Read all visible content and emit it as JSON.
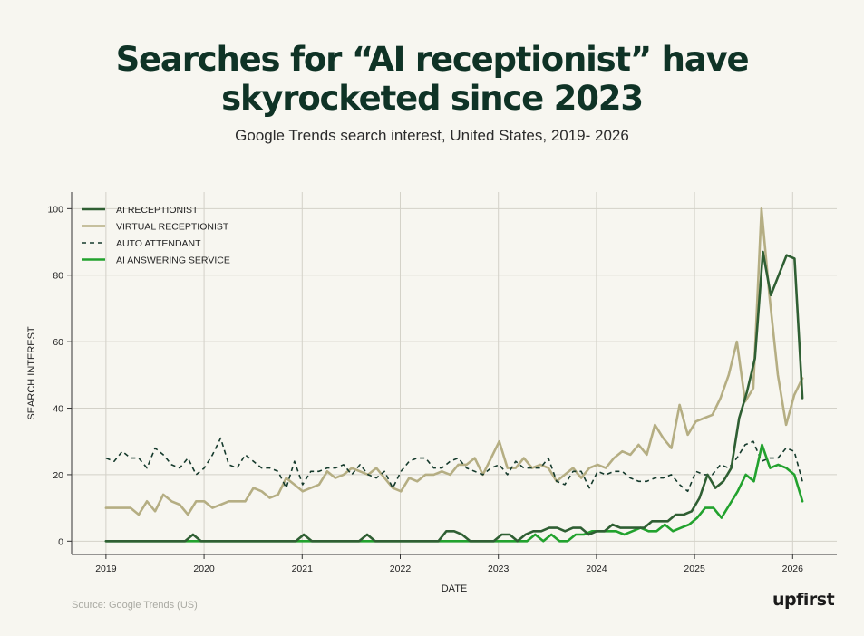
{
  "chart_data": {
    "type": "line",
    "title": [
      "Searches for “AI receptionist” have",
      "skyrocketed since 2023"
    ],
    "subtitle": "Google Trends search interest, United States, 2019- 2026",
    "xlabel": "DATE",
    "ylabel": "SEARCH INTEREST",
    "xlim": [
      2018.65,
      2026.45
    ],
    "ylim": [
      -4,
      105
    ],
    "x_ticks": [
      2019,
      2020,
      2021,
      2022,
      2023,
      2024,
      2025,
      2026
    ],
    "x_tick_labels": [
      "2019",
      "2020",
      "2021",
      "2022",
      "2023",
      "2024",
      "2025",
      "2026"
    ],
    "y_ticks": [
      0,
      20,
      40,
      60,
      80,
      100
    ],
    "y_tick_labels": [
      "0",
      "20",
      "40",
      "60",
      "80",
      "100"
    ],
    "grid": true,
    "legend_position": "top-left",
    "x_start": 2019,
    "x_step_months": 1,
    "series": [
      {
        "name": "AI RECEPTIONIST",
        "color": "#2f5f33",
        "style": "solid",
        "values": [
          0,
          0,
          0,
          0,
          0,
          0,
          0,
          0,
          0,
          0,
          0,
          2,
          0,
          0,
          0,
          0,
          0,
          0,
          0,
          0,
          0,
          0,
          0,
          0,
          0,
          2,
          0,
          0,
          0,
          0,
          0,
          0,
          0,
          2,
          0,
          0,
          0,
          0,
          0,
          0,
          0,
          0,
          0,
          3,
          3,
          2,
          0,
          0,
          0,
          0,
          2,
          2,
          0,
          2,
          3,
          3,
          4,
          4,
          3,
          4,
          4,
          2,
          3,
          3,
          5,
          4,
          4,
          4,
          4,
          6,
          6,
          6,
          8,
          8,
          9,
          13,
          20,
          16,
          18,
          22,
          37,
          45,
          55,
          87,
          74,
          80,
          86,
          85,
          43
        ]
      },
      {
        "name": "VIRTUAL RECEPTIONIST",
        "color": "#b5ae83",
        "style": "solid",
        "values": [
          10,
          10,
          10,
          10,
          8,
          12,
          9,
          14,
          12,
          11,
          8,
          12,
          12,
          10,
          11,
          12,
          12,
          12,
          16,
          15,
          13,
          14,
          19,
          17,
          15,
          16,
          17,
          21,
          19,
          20,
          22,
          21,
          20,
          22,
          19,
          16,
          15,
          19,
          18,
          20,
          20,
          21,
          20,
          23,
          23,
          25,
          20,
          25,
          30,
          22,
          22,
          25,
          22,
          23,
          22,
          18,
          20,
          22,
          19,
          22,
          23,
          22,
          25,
          27,
          26,
          29,
          26,
          35,
          31,
          28,
          41,
          32,
          36,
          37,
          38,
          43,
          50,
          60,
          42,
          46,
          100,
          73,
          50,
          35,
          44,
          49
        ]
      },
      {
        "name": "AUTO ATTENDANT",
        "color": "#153a2c",
        "style": "dashed",
        "values": [
          25,
          24,
          27,
          25,
          25,
          22,
          28,
          26,
          23,
          22,
          25,
          20,
          22,
          26,
          31,
          23,
          22,
          26,
          24,
          22,
          22,
          21,
          16,
          24,
          17,
          21,
          21,
          22,
          22,
          23,
          20,
          23,
          20,
          19,
          21,
          16,
          21,
          24,
          25,
          25,
          22,
          22,
          24,
          25,
          22,
          21,
          20,
          22,
          23,
          20,
          24,
          22,
          22,
          22,
          25,
          18,
          17,
          21,
          21,
          16,
          21,
          20,
          21,
          21,
          19,
          18,
          18,
          19,
          19,
          20,
          17,
          15,
          21,
          20,
          20,
          23,
          22,
          25,
          29,
          30,
          24,
          25,
          25,
          28,
          27,
          18
        ]
      },
      {
        "name": "AI ANSWERING SERVICE",
        "color": "#22a22e",
        "style": "solid",
        "values": [
          0,
          0,
          0,
          0,
          0,
          0,
          0,
          0,
          0,
          0,
          0,
          0,
          0,
          0,
          0,
          0,
          0,
          0,
          0,
          0,
          0,
          0,
          0,
          0,
          0,
          0,
          0,
          0,
          0,
          0,
          0,
          0,
          0,
          0,
          0,
          0,
          0,
          0,
          0,
          0,
          0,
          0,
          0,
          0,
          0,
          0,
          0,
          0,
          0,
          0,
          0,
          0,
          0,
          2,
          0,
          2,
          0,
          0,
          2,
          2,
          3,
          3,
          3,
          3,
          2,
          3,
          4,
          3,
          3,
          5,
          3,
          4,
          5,
          7,
          10,
          10,
          7,
          11,
          15,
          20,
          18,
          29,
          22,
          23,
          22,
          20,
          12
        ]
      }
    ]
  },
  "source": "Source: Google Trends (US)",
  "logo": "upfirst"
}
